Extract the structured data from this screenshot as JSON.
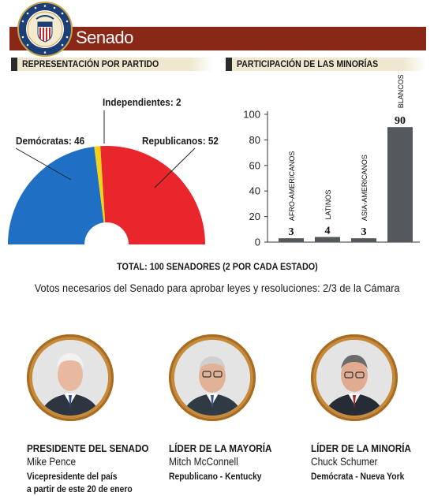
{
  "header": {
    "title": "Senado"
  },
  "sections": {
    "party": "REPRESENTACIÓN POR PARTIDO",
    "minorities": "PARTICIPACIÓN DE LAS MINORÍAS"
  },
  "chart_data": [
    {
      "type": "pie",
      "style": "semicircle",
      "slices": [
        {
          "label": "Demócratas: 46",
          "name": "Demócratas",
          "value": 46,
          "color": "#1f6fc5"
        },
        {
          "label": "Independientes: 2",
          "name": "Independientes",
          "value": 2,
          "color": "#f2d31a"
        },
        {
          "label": "Republicanos: 52",
          "name": "Republicanos",
          "value": 52,
          "color": "#e8262b"
        }
      ]
    },
    {
      "type": "bar",
      "categories": [
        "AFRO-AMERICANOS",
        "LATINOS",
        "ASIA-AMERICANOS",
        "BLANCOS"
      ],
      "values": [
        3,
        4,
        3,
        90
      ],
      "data_labels": [
        "3",
        "4",
        "3",
        "90"
      ],
      "ylim": [
        0,
        100
      ],
      "yticks": [
        "0",
        "20",
        "40",
        "60",
        "80",
        "100"
      ],
      "bar_color": "#55585c",
      "grid": false
    }
  ],
  "total": "TOTAL: 100 SENADORES (2 POR CADA ESTADO)",
  "votes_note": "Votos necesarios del Senado para aprobar leyes y resoluciones: 2/3 de la Cámara",
  "leaders": [
    {
      "role": "PRESIDENTE DEL SENADO",
      "name": "Mike Pence",
      "desc1": "Vicepresidente del país",
      "desc2": "a partir de este 20 de enero"
    },
    {
      "role": "LÍDER DE LA MAYORÍA",
      "name": "Mitch McConnell",
      "desc1": "Republicano - Kentucky",
      "desc2": ""
    },
    {
      "role": "LÍDER DE LA MINORÍA",
      "name": "Chuck Schumer",
      "desc1": "Demócrata - Nueva York",
      "desc2": ""
    }
  ]
}
